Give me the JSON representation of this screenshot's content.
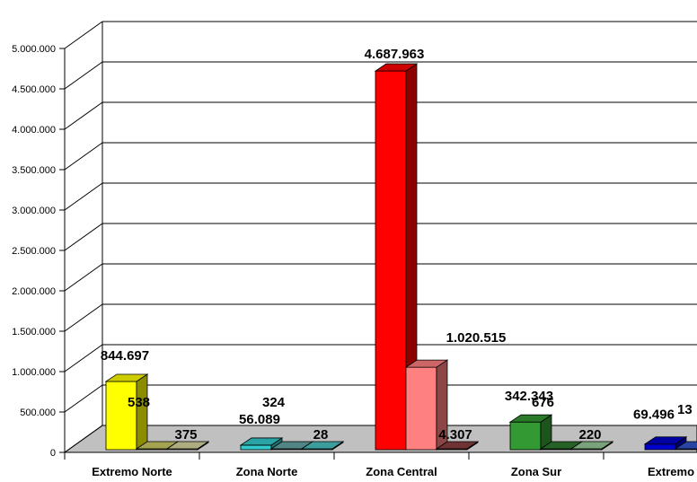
{
  "chart_data": {
    "type": "bar",
    "style": "3d-clustered-column",
    "categories": [
      "Extremo Norte",
      "Zona Norte",
      "Zona Central",
      "Zona Sur",
      "Extremo"
    ],
    "ylim": [
      0,
      5000000
    ],
    "yticks": [
      "0",
      "500.000",
      "1.000.000",
      "1.500.000",
      "2.000.000",
      "2.500.000",
      "3.000.000",
      "3.500.000",
      "4.000.000",
      "4.500.000",
      "5.000.000"
    ],
    "grid": true,
    "legend": "none",
    "series": [
      {
        "values": [
          844697,
          56089,
          4687963,
          342343,
          69496
        ],
        "labels": [
          "844.697",
          "56.089",
          "4.687.963",
          "342.343",
          "69.496"
        ]
      },
      {
        "values": [
          538,
          324,
          1020515,
          676,
          13
        ],
        "labels": [
          "538",
          "324",
          "1.020.515",
          "676",
          "13"
        ]
      },
      {
        "values": [
          375,
          28,
          4307,
          220,
          null
        ],
        "labels": [
          "375",
          "28",
          "4.307",
          "220",
          ""
        ]
      }
    ],
    "colors": [
      [
        "#ffff00",
        "#cccc66",
        "#d8d8a0"
      ],
      [
        "#33cccc",
        "#66a6a6",
        "#4cc4c4"
      ],
      [
        "#ff0000",
        "#ff8080",
        "#8c4040"
      ],
      [
        "#339933",
        "#2f7a2f",
        "#99cc99"
      ],
      [
        "#0000cc",
        "#3355cc",
        "#6680cc"
      ]
    ]
  }
}
